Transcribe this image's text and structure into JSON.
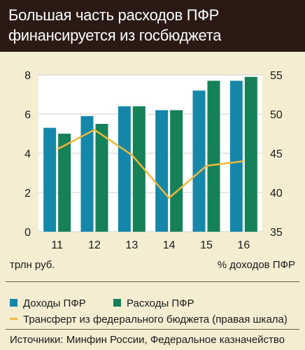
{
  "title": "Большая часть расходов ПФР финансируется из госбюджета",
  "units": {
    "left": "трлн руб.",
    "right": "% доходов ПФР"
  },
  "legend": {
    "income": "Доходы ПФР",
    "expense": "Расходы ПФР",
    "transfer": "Трансферт из федерального бюджета (правая шкала)"
  },
  "source": "Источники: Минфин России, Федеральное казначейство",
  "colors": {
    "income": "#1587a8",
    "expense": "#168158",
    "transfer": "#f0b73a",
    "plot_bg": "#ffffff",
    "grid": "#cfcfcf",
    "header": "#2b1a13"
  },
  "chart_data": {
    "type": "bar",
    "categories": [
      "11",
      "12",
      "13",
      "14",
      "15",
      "16"
    ],
    "series": [
      {
        "name": "Доходы ПФР",
        "axis": "left",
        "type": "bar",
        "values": [
          5.3,
          5.9,
          6.4,
          6.2,
          7.2,
          7.7
        ]
      },
      {
        "name": "Расходы ПФР",
        "axis": "left",
        "type": "bar",
        "values": [
          5.0,
          5.5,
          6.4,
          6.2,
          7.7,
          7.9
        ]
      },
      {
        "name": "Трансферт из федерального бюджета (правая шкала)",
        "axis": "right",
        "type": "line",
        "values": [
          45.5,
          48.0,
          44.8,
          39.3,
          43.4,
          44.0
        ]
      }
    ],
    "y_left": {
      "range": [
        0,
        8
      ],
      "ticks": [
        "0",
        "2",
        "4",
        "6",
        "8"
      ]
    },
    "y_right": {
      "range": [
        35,
        55
      ],
      "ticks": [
        "35",
        "40",
        "45",
        "50",
        "55"
      ]
    },
    "grid": true,
    "legend_position": "bottom"
  }
}
